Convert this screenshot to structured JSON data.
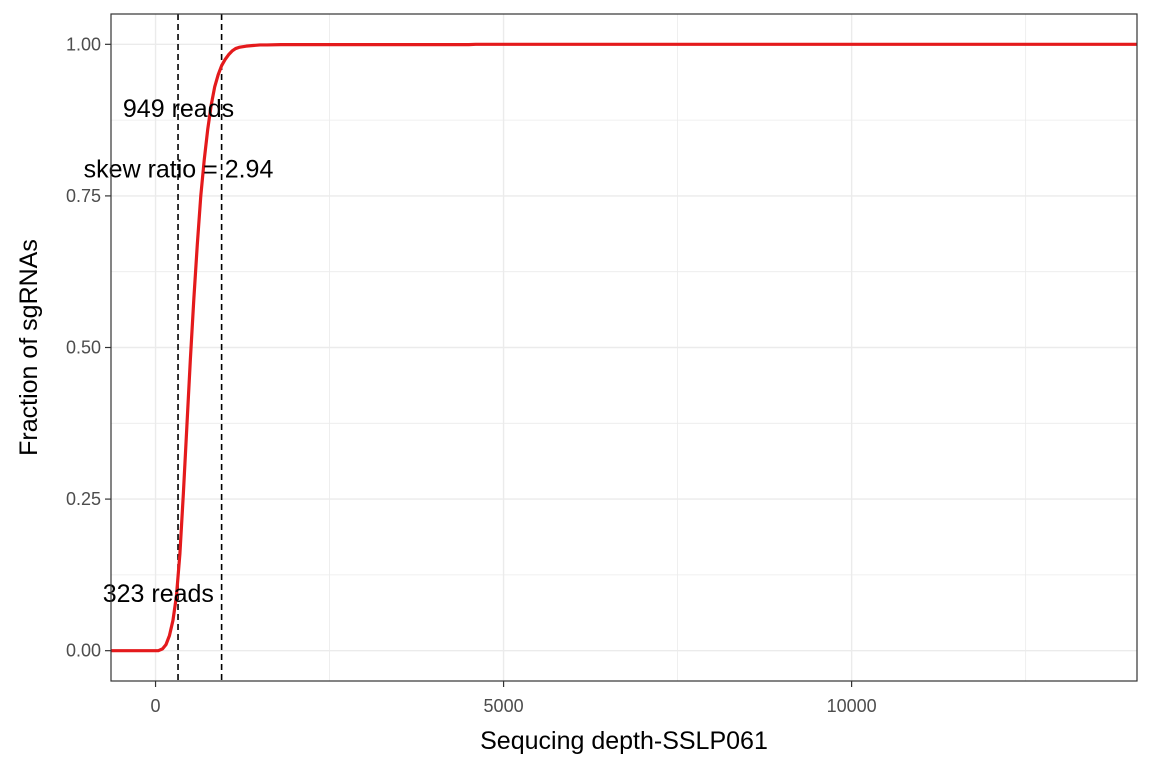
{
  "chart_data": {
    "type": "line",
    "title": "",
    "xlabel": "Sequcing depth-SSLP061",
    "ylabel": "Fraction of sgRNAs",
    "xlim": [
      -640,
      14100
    ],
    "ylim": [
      -0.05,
      1.05
    ],
    "x_ticks": [
      0,
      5000,
      10000
    ],
    "x_tick_labels": [
      "0",
      "5000",
      "10000"
    ],
    "y_ticks": [
      0,
      0.25,
      0.5,
      0.75,
      1.0
    ],
    "y_tick_labels": [
      "0.00",
      "0.25",
      "0.50",
      "0.75",
      "1.00"
    ],
    "grid": true,
    "legend": "none",
    "series": [
      {
        "color": "#e41a1c",
        "x": [
          -640,
          40,
          100,
          150,
          200,
          250,
          300,
          350,
          400,
          450,
          500,
          550,
          600,
          650,
          700,
          750,
          800,
          850,
          900,
          950,
          1000,
          1050,
          1100,
          1150,
          1200,
          1300,
          1400,
          1500,
          1600,
          1800,
          2000,
          3000,
          4500,
          4600,
          14100
        ],
        "y": [
          0,
          0,
          0.003,
          0.01,
          0.025,
          0.05,
          0.09,
          0.16,
          0.26,
          0.37,
          0.48,
          0.58,
          0.67,
          0.75,
          0.81,
          0.86,
          0.9,
          0.93,
          0.95,
          0.965,
          0.975,
          0.983,
          0.989,
          0.993,
          0.995,
          0.997,
          0.998,
          0.999,
          0.999,
          0.9995,
          0.9995,
          0.9995,
          0.9995,
          1.0,
          1.0
        ]
      }
    ],
    "vlines": [
      323,
      949
    ],
    "annotations": [
      {
        "text": "949 reads",
        "x": 330,
        "y": 0.895
      },
      {
        "text": "skew ratio = 2.94",
        "x": 330,
        "y": 0.795
      },
      {
        "text": "323 reads",
        "x": 40,
        "y": 0.095
      }
    ],
    "colors": {
      "line": "#e41a1c",
      "vline": "#000000",
      "grid": "#ebebeb",
      "border": "#333333"
    }
  }
}
